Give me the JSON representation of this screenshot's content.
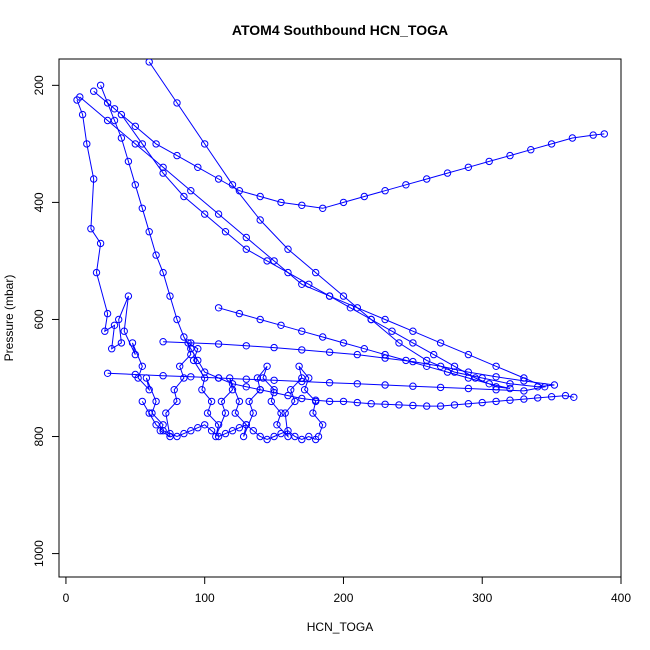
{
  "chart_data": {
    "type": "scatter",
    "title": "ATOM4 Southbound HCN_TOGA",
    "xlabel": "HCN_TOGA",
    "ylabel": "Pressure (mbar)",
    "xlim": [
      -5,
      400
    ],
    "ylim": [
      1040,
      155
    ],
    "y_inverted": true,
    "xticks": [
      0,
      100,
      200,
      300,
      400
    ],
    "yticks": [
      200,
      400,
      600,
      800,
      1000
    ],
    "grid": false,
    "legend": "none",
    "style": "points connected by lines (type='b')",
    "color": "#0000ff",
    "series": [
      {
        "x": [
          8,
          12,
          15,
          20,
          18,
          25,
          22,
          30,
          28,
          35,
          33,
          40,
          38,
          45,
          42,
          50,
          48,
          55,
          52,
          60,
          58,
          65,
          62,
          70,
          68,
          75,
          72,
          80,
          78,
          85,
          82,
          90,
          88,
          95,
          92,
          100,
          98,
          105,
          102,
          110,
          108,
          115,
          112,
          120,
          118,
          125,
          122,
          130,
          128,
          135,
          132,
          140,
          138,
          145,
          142,
          150,
          148,
          155,
          152,
          160,
          158,
          165,
          162,
          170,
          168,
          175,
          172,
          180,
          178,
          185,
          182
        ],
        "y": [
          225,
          250,
          300,
          360,
          445,
          470,
          520,
          590,
          620,
          610,
          650,
          640,
          600,
          560,
          620,
          660,
          640,
          680,
          700,
          720,
          700,
          740,
          760,
          780,
          790,
          800,
          760,
          740,
          720,
          700,
          680,
          660,
          640,
          650,
          670,
          700,
          720,
          740,
          760,
          780,
          800,
          760,
          740,
          720,
          700,
          740,
          760,
          780,
          800,
          760,
          740,
          720,
          700,
          680,
          700,
          720,
          740,
          760,
          780,
          800,
          760,
          740,
          720,
          700,
          680,
          700,
          720,
          740,
          760,
          780,
          800
        ]
      },
      {
        "x": [
          25,
          30,
          35,
          40,
          45,
          50,
          55,
          60,
          65,
          70,
          75,
          80,
          85,
          90,
          95,
          100,
          110,
          120,
          130,
          140,
          150,
          160,
          170,
          180,
          190,
          200,
          210,
          220,
          230,
          240,
          250,
          260,
          270,
          280,
          290,
          300,
          310,
          320,
          330,
          340,
          350,
          360,
          366
        ],
        "y": [
          200,
          230,
          260,
          290,
          330,
          370,
          410,
          450,
          490,
          520,
          560,
          600,
          630,
          650,
          670,
          690,
          700,
          710,
          715,
          720,
          725,
          730,
          735,
          738,
          740,
          740,
          742,
          744,
          745,
          746,
          747,
          748,
          748,
          746,
          744,
          742,
          740,
          738,
          736,
          734,
          732,
          730,
          733
        ]
      },
      {
        "x": [
          60,
          80,
          100,
          120,
          140,
          160,
          180,
          200,
          220,
          240,
          260,
          280,
          300,
          320,
          340,
          352,
          330,
          310,
          290,
          270,
          250,
          230,
          210,
          190,
          170,
          150,
          130,
          110,
          90,
          70
        ],
        "y": [
          160,
          230,
          300,
          370,
          430,
          480,
          520,
          560,
          600,
          640,
          670,
          690,
          700,
          710,
          715,
          712,
          705,
          698,
          690,
          680,
          672,
          666,
          660,
          656,
          652,
          648,
          645,
          642,
          640,
          638
        ]
      },
      {
        "x": [
          40,
          55,
          70,
          85,
          100,
          115,
          130,
          145,
          160,
          175,
          190,
          205,
          220,
          235,
          250,
          265,
          280,
          295,
          310,
          320,
          305,
          290,
          275,
          260,
          245,
          230,
          215,
          200,
          185,
          170,
          155,
          140,
          125,
          110
        ],
        "y": [
          250,
          300,
          350,
          390,
          420,
          450,
          480,
          500,
          520,
          540,
          560,
          580,
          600,
          620,
          640,
          660,
          680,
          700,
          715,
          718,
          710,
          700,
          690,
          680,
          670,
          660,
          650,
          640,
          630,
          620,
          610,
          600,
          590,
          580
        ]
      },
      {
        "x": [
          20,
          35,
          50,
          65,
          80,
          95,
          110,
          125,
          140,
          155,
          170,
          185,
          200,
          215,
          230,
          245,
          260,
          275,
          290,
          305,
          320,
          335,
          350,
          365,
          380,
          388
        ],
        "y": [
          210,
          240,
          270,
          300,
          320,
          340,
          360,
          380,
          390,
          400,
          405,
          410,
          400,
          390,
          380,
          370,
          360,
          350,
          340,
          330,
          320,
          310,
          300,
          290,
          285,
          283
        ]
      },
      {
        "x": [
          10,
          30,
          50,
          70,
          90,
          110,
          130,
          150,
          170,
          190,
          210,
          230,
          250,
          270,
          290,
          310,
          330,
          345,
          330,
          310,
          290,
          270,
          250,
          230,
          210,
          190,
          170,
          150,
          130,
          110,
          90,
          70,
          50,
          30
        ],
        "y": [
          220,
          260,
          300,
          340,
          380,
          420,
          460,
          500,
          540,
          560,
          580,
          600,
          620,
          640,
          660,
          680,
          700,
          715,
          722,
          720,
          718,
          716,
          714,
          712,
          710,
          708,
          706,
          704,
          702,
          700,
          698,
          696,
          694,
          692
        ]
      },
      {
        "x": [
          55,
          60,
          65,
          70,
          75,
          80,
          85,
          90,
          95,
          100,
          105,
          110,
          115,
          120,
          125,
          130,
          135,
          140,
          145,
          150,
          155,
          160,
          165,
          170,
          175,
          180
        ],
        "y": [
          740,
          760,
          780,
          790,
          795,
          800,
          795,
          790,
          785,
          780,
          790,
          800,
          795,
          790,
          785,
          780,
          790,
          800,
          805,
          800,
          795,
          790,
          800,
          805,
          800,
          805
        ]
      }
    ]
  }
}
